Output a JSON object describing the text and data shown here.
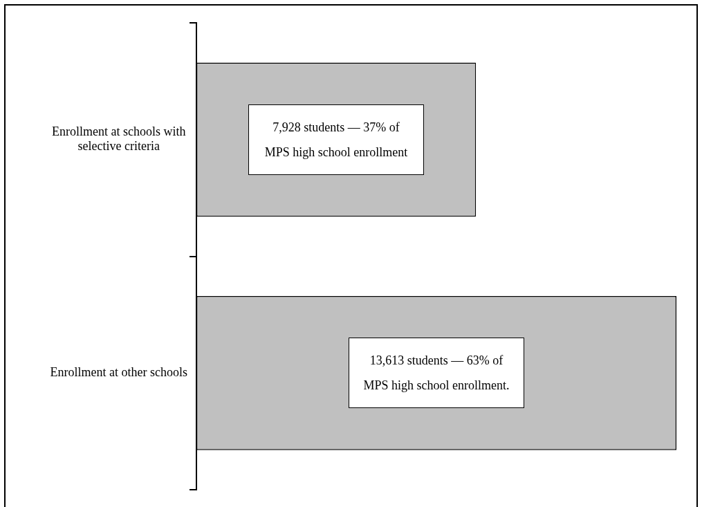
{
  "chart_data": {
    "type": "bar",
    "orientation": "horizontal",
    "categories": [
      "Enrollment at schools with selective criteria",
      "Enrollment at other schools"
    ],
    "values": [
      7928,
      13613
    ],
    "color": "#c0c0c0",
    "value_labels": [
      "7,928 students — 37% of MPS high school enrollment",
      "13,613 students — 63% of MPS high school enrollment."
    ],
    "grid": false,
    "legend": false,
    "tick_labels": "y"
  }
}
